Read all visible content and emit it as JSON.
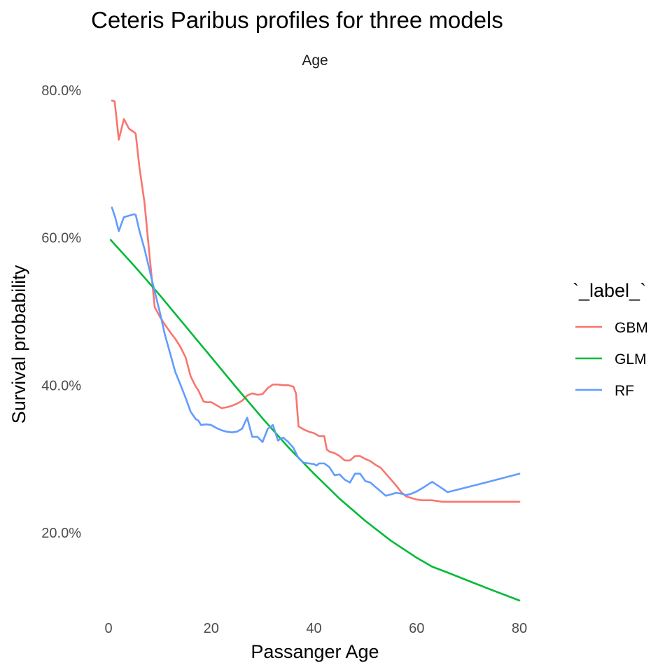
{
  "chart_data": {
    "type": "line",
    "title": "Ceteris Paribus profiles for three models",
    "facet_label": "Age",
    "xlabel": "Passanger Age",
    "ylabel": "Survival probability",
    "xlim": [
      0,
      80
    ],
    "ylim": [
      0.1,
      0.82
    ],
    "x_ticks": [
      0,
      20,
      40,
      60,
      80
    ],
    "x_tick_labels": [
      "0",
      "20",
      "40",
      "60",
      "80"
    ],
    "y_ticks": [
      0.2,
      0.4,
      0.6,
      0.8
    ],
    "y_tick_labels": [
      "20.0%",
      "40.0%",
      "60.0%",
      "80.0%"
    ],
    "grid": false,
    "legend": {
      "title": "`_label_`",
      "position": "right"
    },
    "series": [
      {
        "name": "GBM",
        "color": "#F8766D",
        "points": [
          [
            0.67,
            0.786
          ],
          [
            1.2,
            0.785
          ],
          [
            2,
            0.733
          ],
          [
            3,
            0.761
          ],
          [
            4,
            0.748
          ],
          [
            5,
            0.743
          ],
          [
            5.3,
            0.741
          ],
          [
            6,
            0.697
          ],
          [
            7,
            0.648
          ],
          [
            8,
            0.575
          ],
          [
            9,
            0.506
          ],
          [
            10,
            0.493
          ],
          [
            11,
            0.482
          ],
          [
            12,
            0.472
          ],
          [
            13,
            0.463
          ],
          [
            14,
            0.452
          ],
          [
            15,
            0.438
          ],
          [
            16,
            0.412
          ],
          [
            17,
            0.398
          ],
          [
            17.5,
            0.393
          ],
          [
            18.5,
            0.378
          ],
          [
            19,
            0.377
          ],
          [
            20,
            0.377
          ],
          [
            21,
            0.373
          ],
          [
            22,
            0.369
          ],
          [
            23,
            0.37
          ],
          [
            24,
            0.372
          ],
          [
            25,
            0.375
          ],
          [
            26,
            0.379
          ],
          [
            27,
            0.386
          ],
          [
            28,
            0.389
          ],
          [
            29,
            0.387
          ],
          [
            30,
            0.388
          ],
          [
            31,
            0.396
          ],
          [
            32,
            0.401
          ],
          [
            33,
            0.401
          ],
          [
            34,
            0.4
          ],
          [
            35,
            0.4
          ],
          [
            36,
            0.398
          ],
          [
            36.5,
            0.389
          ],
          [
            37,
            0.344
          ],
          [
            38,
            0.34
          ],
          [
            39,
            0.337
          ],
          [
            40,
            0.335
          ],
          [
            41,
            0.331
          ],
          [
            42,
            0.331
          ],
          [
            42.5,
            0.313
          ],
          [
            43,
            0.31
          ],
          [
            44,
            0.308
          ],
          [
            45,
            0.304
          ],
          [
            46,
            0.298
          ],
          [
            47,
            0.298
          ],
          [
            48,
            0.304
          ],
          [
            49,
            0.304
          ],
          [
            50,
            0.3
          ],
          [
            51,
            0.297
          ],
          [
            52,
            0.292
          ],
          [
            53,
            0.288
          ],
          [
            54,
            0.28
          ],
          [
            55,
            0.272
          ],
          [
            56,
            0.264
          ],
          [
            57,
            0.255
          ],
          [
            58,
            0.249
          ],
          [
            59,
            0.247
          ],
          [
            60,
            0.245
          ],
          [
            61,
            0.244
          ],
          [
            63,
            0.244
          ],
          [
            65,
            0.242
          ],
          [
            66,
            0.242
          ],
          [
            70,
            0.242
          ],
          [
            74,
            0.242
          ],
          [
            80,
            0.242
          ]
        ]
      },
      {
        "name": "GLM",
        "color": "#00BA38",
        "points": [
          [
            0.42,
            0.597
          ],
          [
            5,
            0.562
          ],
          [
            10,
            0.522
          ],
          [
            15,
            0.48
          ],
          [
            20,
            0.438
          ],
          [
            25,
            0.396
          ],
          [
            30,
            0.355
          ],
          [
            35,
            0.316
          ],
          [
            40,
            0.28
          ],
          [
            45,
            0.246
          ],
          [
            50,
            0.216
          ],
          [
            55,
            0.189
          ],
          [
            60,
            0.166
          ],
          [
            63,
            0.154
          ],
          [
            66,
            0.146
          ],
          [
            70,
            0.135
          ],
          [
            74,
            0.124
          ],
          [
            80,
            0.108
          ]
        ]
      },
      {
        "name": "RF",
        "color": "#619CFF",
        "points": [
          [
            0.67,
            0.641
          ],
          [
            1.3,
            0.628
          ],
          [
            2,
            0.609
          ],
          [
            3,
            0.628
          ],
          [
            4,
            0.63
          ],
          [
            5,
            0.632
          ],
          [
            5.3,
            0.631
          ],
          [
            6,
            0.61
          ],
          [
            7,
            0.585
          ],
          [
            8,
            0.556
          ],
          [
            9,
            0.527
          ],
          [
            10,
            0.499
          ],
          [
            11,
            0.468
          ],
          [
            12,
            0.443
          ],
          [
            13,
            0.418
          ],
          [
            14,
            0.401
          ],
          [
            15,
            0.383
          ],
          [
            16,
            0.364
          ],
          [
            17,
            0.354
          ],
          [
            17.5,
            0.352
          ],
          [
            18,
            0.346
          ],
          [
            19,
            0.347
          ],
          [
            20,
            0.346
          ],
          [
            21,
            0.342
          ],
          [
            22,
            0.339
          ],
          [
            23,
            0.337
          ],
          [
            24,
            0.336
          ],
          [
            25,
            0.337
          ],
          [
            26,
            0.341
          ],
          [
            27,
            0.356
          ],
          [
            28,
            0.33
          ],
          [
            29,
            0.33
          ],
          [
            30,
            0.323
          ],
          [
            31,
            0.341
          ],
          [
            32,
            0.346
          ],
          [
            33,
            0.325
          ],
          [
            34,
            0.329
          ],
          [
            35,
            0.323
          ],
          [
            36,
            0.315
          ],
          [
            37,
            0.301
          ],
          [
            38,
            0.295
          ],
          [
            39,
            0.294
          ],
          [
            40,
            0.293
          ],
          [
            40.5,
            0.291
          ],
          [
            41,
            0.294
          ],
          [
            42,
            0.294
          ],
          [
            43,
            0.289
          ],
          [
            44,
            0.278
          ],
          [
            45,
            0.279
          ],
          [
            46,
            0.272
          ],
          [
            47,
            0.268
          ],
          [
            48,
            0.28
          ],
          [
            49,
            0.28
          ],
          [
            50,
            0.27
          ],
          [
            51,
            0.268
          ],
          [
            52,
            0.262
          ],
          [
            53,
            0.256
          ],
          [
            54,
            0.25
          ],
          [
            55,
            0.252
          ],
          [
            56,
            0.254
          ],
          [
            57,
            0.253
          ],
          [
            58,
            0.251
          ],
          [
            59,
            0.253
          ],
          [
            60,
            0.256
          ],
          [
            61,
            0.26
          ],
          [
            63,
            0.269
          ],
          [
            65,
            0.26
          ],
          [
            66,
            0.255
          ],
          [
            70,
            0.262
          ],
          [
            74,
            0.269
          ],
          [
            80,
            0.28
          ]
        ]
      }
    ]
  }
}
